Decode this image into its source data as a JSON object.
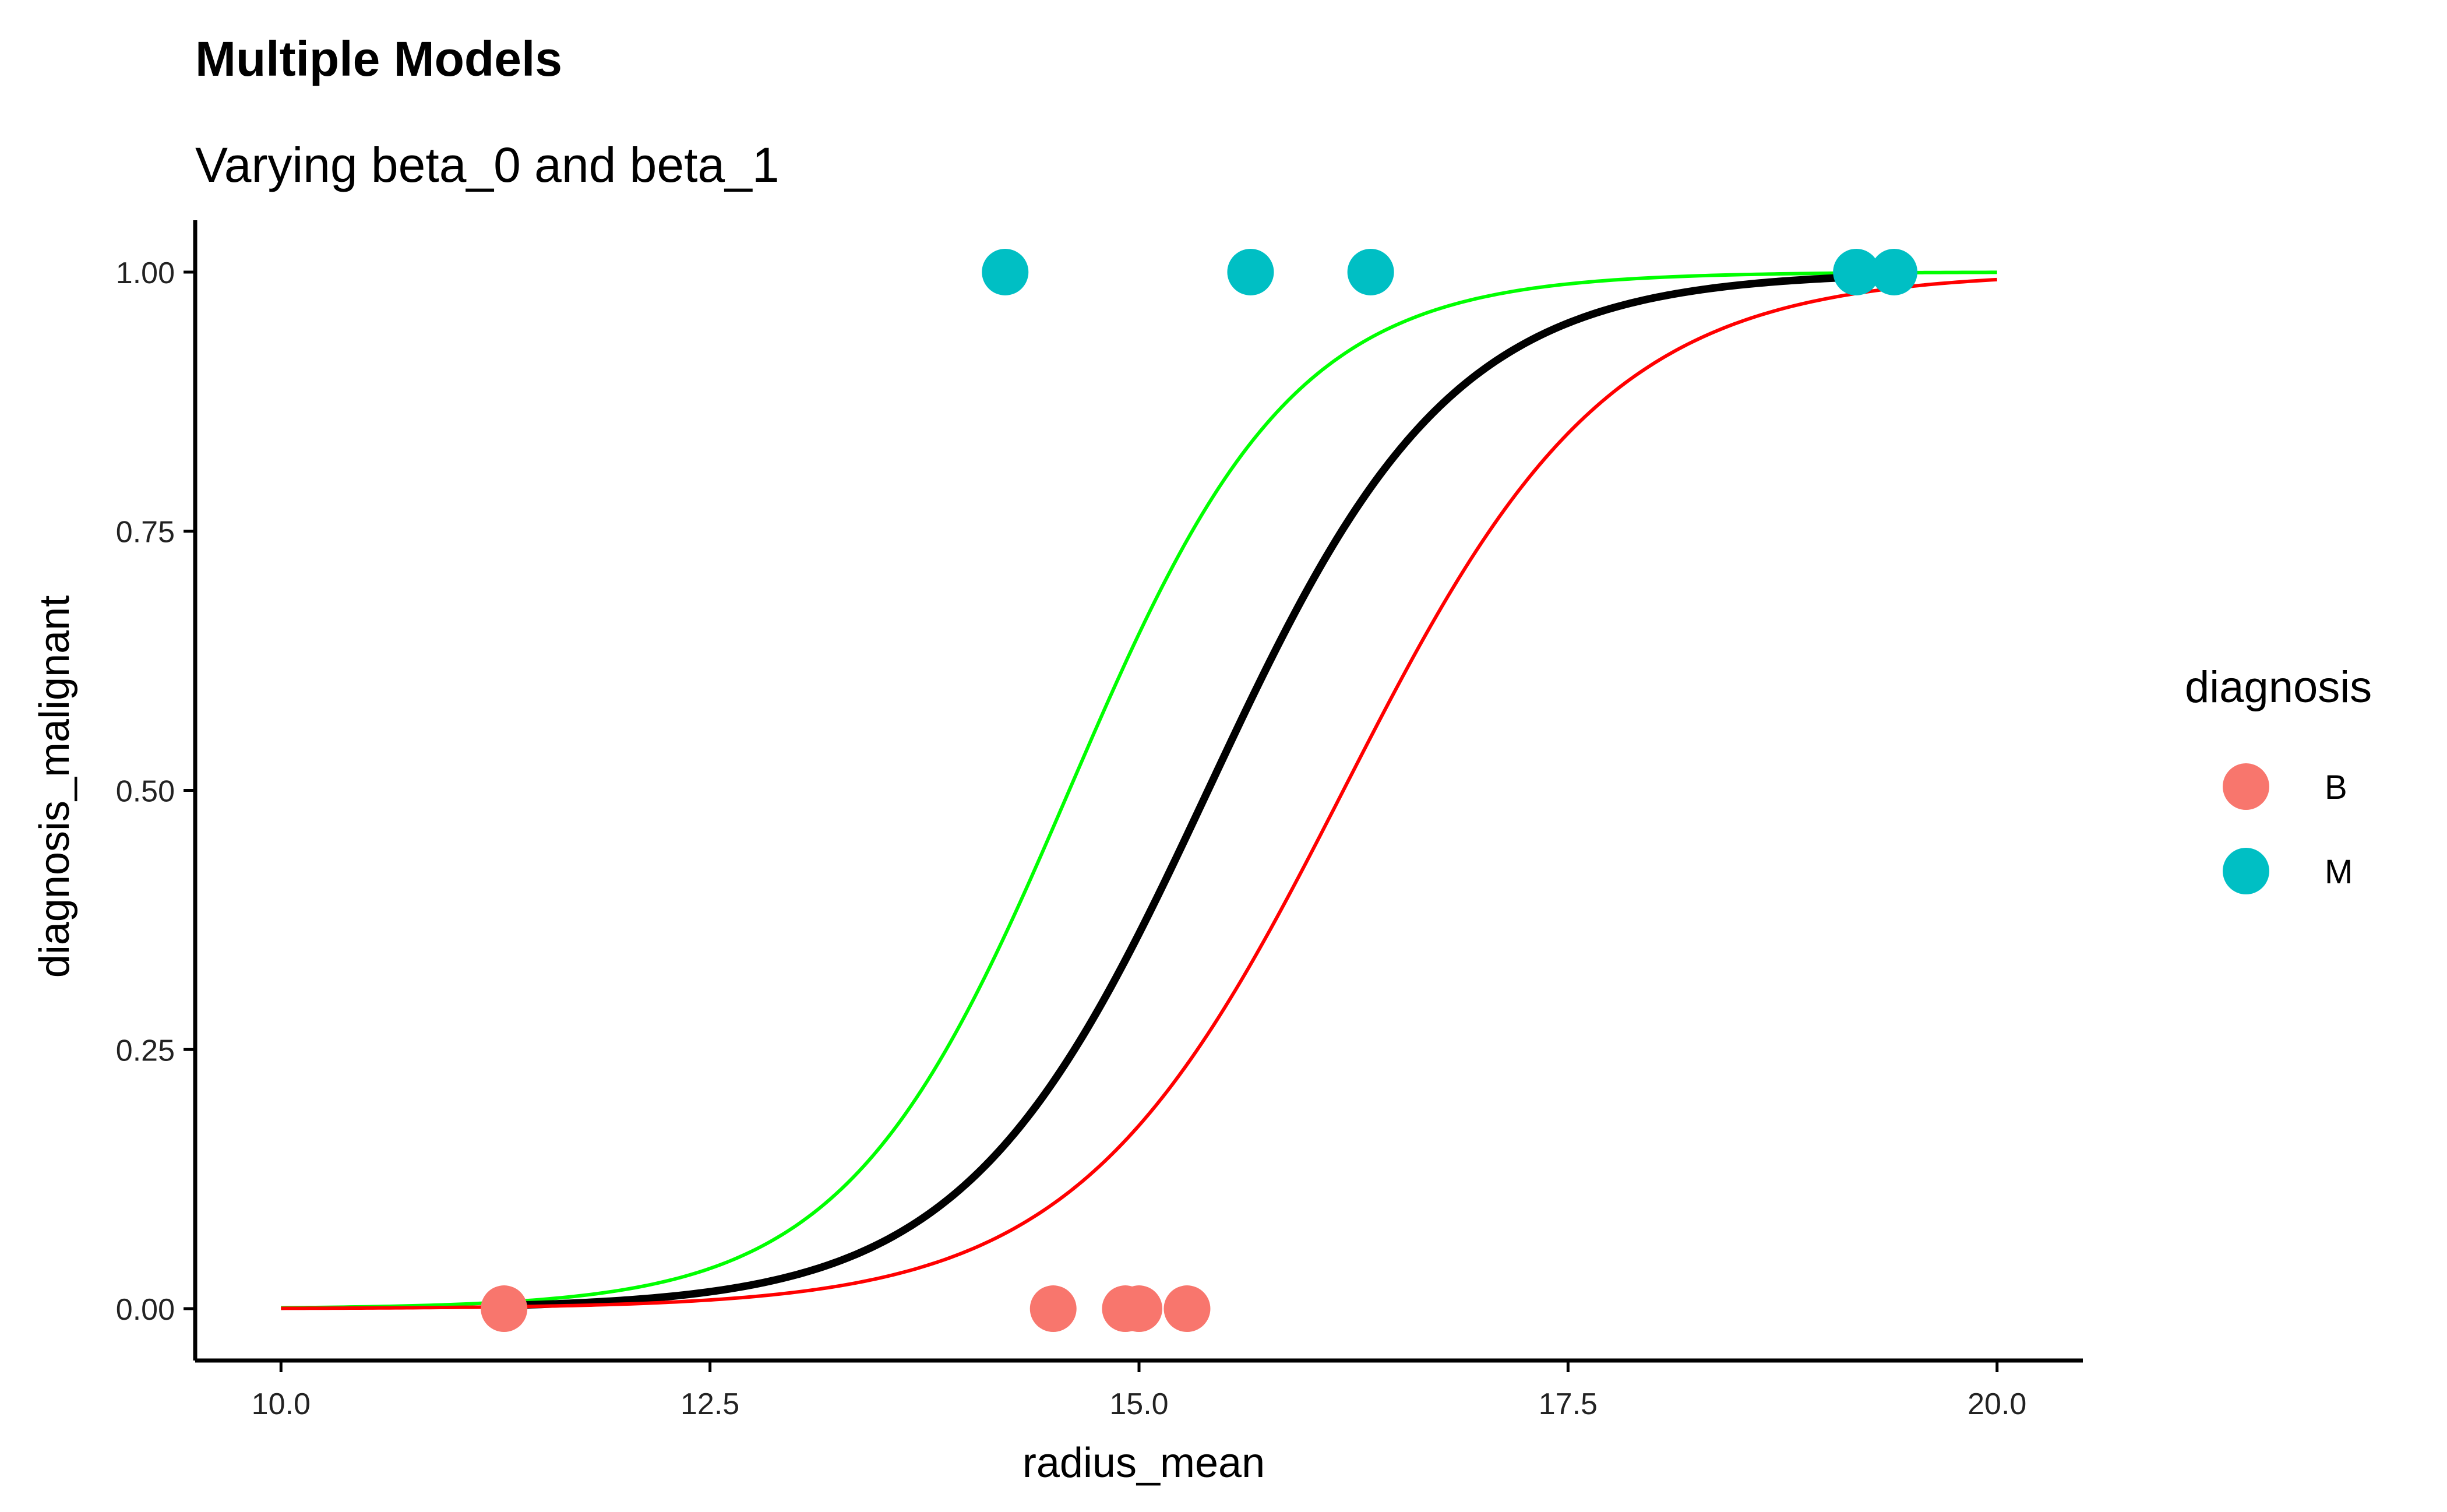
{
  "chart_data": {
    "type": "scatter",
    "title": "Multiple Models",
    "subtitle": "Varying beta_0 and beta_1",
    "xlabel": "radius_mean",
    "ylabel": "diagnosis_malignant",
    "xlim": [
      9.5,
      20.5
    ],
    "ylim": [
      -0.05,
      1.05
    ],
    "xticks": [
      10.0,
      12.5,
      15.0,
      17.5,
      20.0
    ],
    "xtick_labels": [
      "10.0",
      "12.5",
      "15.0",
      "17.5",
      "20.0"
    ],
    "yticks": [
      0.0,
      0.25,
      0.5,
      0.75,
      1.0
    ],
    "ytick_labels": [
      "0.00",
      "0.25",
      "0.50",
      "0.75",
      "1.00"
    ],
    "grid": false,
    "legend": {
      "title": "diagnosis",
      "placement": "right",
      "entries": [
        {
          "label": "B",
          "color": "#F8766D"
        },
        {
          "label": "M",
          "color": "#00BFC4"
        }
      ]
    },
    "points": [
      {
        "x": 11.3,
        "y": 0,
        "group": "B"
      },
      {
        "x": 14.5,
        "y": 0,
        "group": "B"
      },
      {
        "x": 14.92,
        "y": 0,
        "group": "B"
      },
      {
        "x": 15.0,
        "y": 0,
        "group": "B"
      },
      {
        "x": 15.28,
        "y": 0,
        "group": "B"
      },
      {
        "x": 14.22,
        "y": 1,
        "group": "M"
      },
      {
        "x": 15.65,
        "y": 1,
        "group": "M"
      },
      {
        "x": 16.35,
        "y": 1,
        "group": "M"
      },
      {
        "x": 19.18,
        "y": 1,
        "group": "M"
      },
      {
        "x": 19.4,
        "y": 1,
        "group": "M"
      }
    ],
    "curves": [
      {
        "color": "#00FF00",
        "width": 6,
        "x_range": [
          10.0,
          20.0
        ],
        "beta_0": -22.38,
        "beta_1": 1.5336
      },
      {
        "color": "#000000",
        "width": 13,
        "x_range": [
          11.3,
          19.4
        ],
        "beta_0": -21.74,
        "beta_1": 1.4115
      },
      {
        "color": "#FF0000",
        "width": 6,
        "x_range": [
          10.0,
          20.0
        ],
        "beta_0": -20.92,
        "beta_1": 1.2921
      }
    ]
  }
}
